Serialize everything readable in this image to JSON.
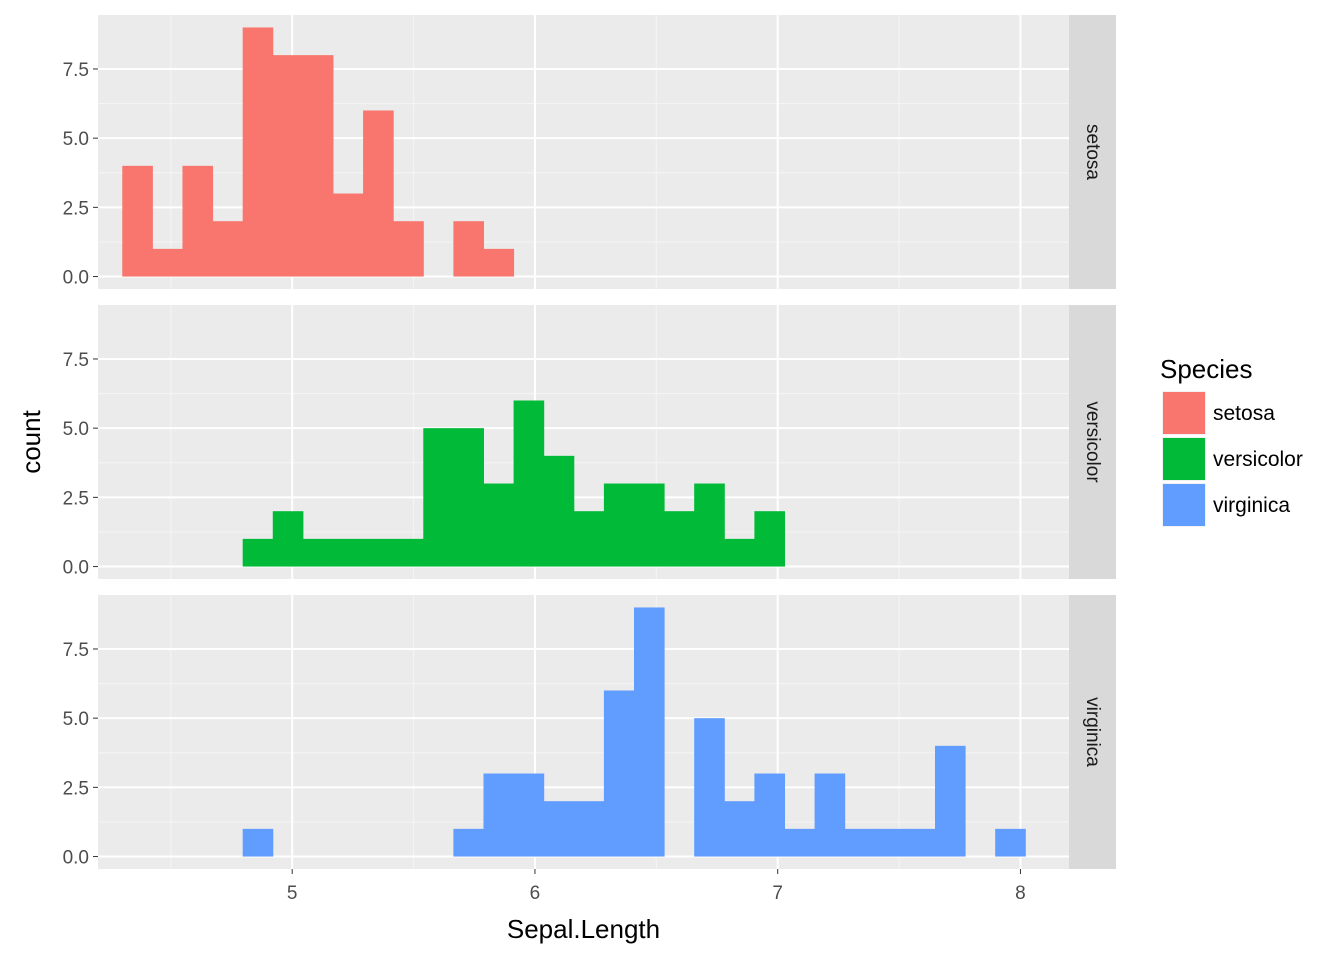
{
  "chart_data": {
    "type": "histogram",
    "facet": "rows",
    "x_label": "Sepal.Length",
    "y_label": "count",
    "x_range": [
      4.2,
      8.2
    ],
    "y_range": [
      -0.45,
      9.45
    ],
    "x_ticks": [
      5,
      6,
      7,
      8
    ],
    "x_tick_labels": [
      "5",
      "6",
      "7",
      "8"
    ],
    "y_ticks": [
      0,
      2.5,
      5,
      7.5
    ],
    "y_tick_labels": [
      "0.0",
      "2.5",
      "5.0",
      "7.5"
    ],
    "grid": true,
    "legend_position": "right",
    "legend_title": "Species",
    "bin_edges": [
      4.3,
      4.424,
      4.548,
      4.672,
      4.796,
      4.92,
      5.044,
      5.168,
      5.292,
      5.416,
      5.54,
      5.664,
      5.788,
      5.912,
      6.036,
      6.16,
      6.284,
      6.408,
      6.532,
      6.656,
      6.78,
      6.904,
      7.028,
      7.152,
      7.276,
      7.4,
      7.524,
      7.648,
      7.772,
      7.896,
      8.02
    ],
    "series": [
      {
        "name": "setosa",
        "color": "#F8766D",
        "counts": [
          4,
          1,
          4,
          2,
          9,
          8,
          8,
          3,
          6,
          2,
          0,
          2,
          1,
          0,
          0,
          0,
          0,
          0,
          0,
          0,
          0,
          0,
          0,
          0,
          0,
          0,
          0,
          0,
          0,
          0
        ]
      },
      {
        "name": "versicolor",
        "color": "#00BA38",
        "counts": [
          0,
          0,
          0,
          0,
          1,
          2,
          1,
          1,
          1,
          1,
          5,
          5,
          3,
          6,
          4,
          2,
          3,
          3,
          2,
          3,
          1,
          2,
          0,
          0,
          0,
          0,
          0,
          0,
          0,
          0
        ]
      },
      {
        "name": "virginica",
        "color": "#619CFF",
        "counts": [
          0,
          0,
          0,
          0,
          1,
          0,
          0,
          0,
          0,
          0,
          0,
          1,
          3,
          3,
          2,
          2,
          6,
          9,
          0,
          5,
          2,
          3,
          1,
          3,
          1,
          1,
          1,
          4,
          0,
          1
        ]
      }
    ]
  }
}
